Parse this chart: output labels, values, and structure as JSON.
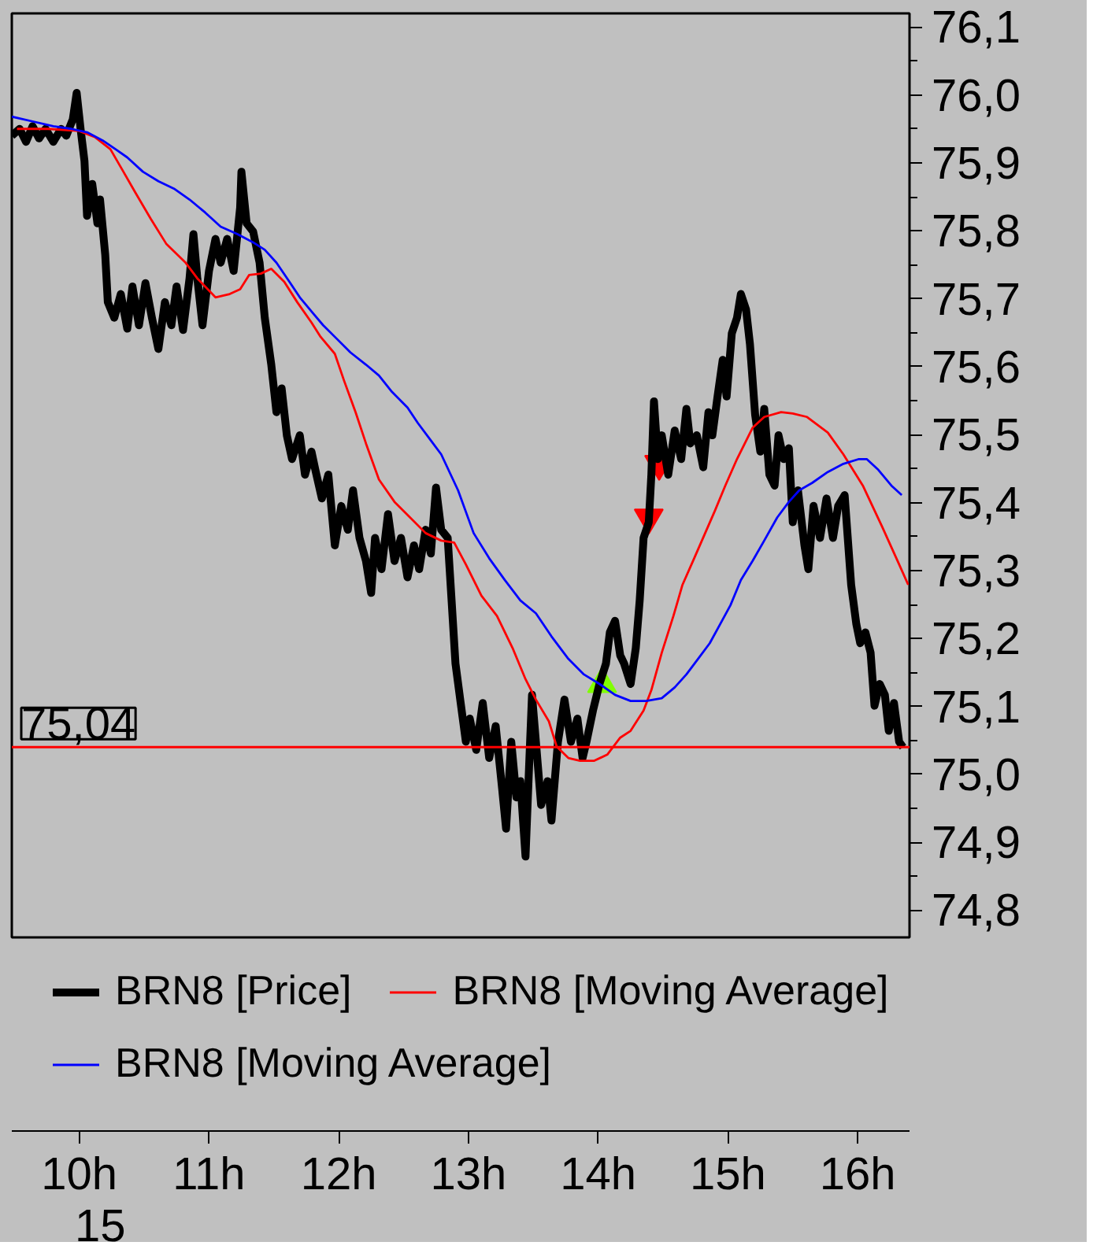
{
  "chart_data": {
    "type": "line",
    "xlim": [
      9.48,
      16.4
    ],
    "ylim": [
      74.76,
      76.12
    ],
    "xticks": [
      {
        "value": 10,
        "label": "10h"
      },
      {
        "value": 11,
        "label": "11h"
      },
      {
        "value": 12,
        "label": "12h"
      },
      {
        "value": 13,
        "label": "13h"
      },
      {
        "value": 14,
        "label": "14h"
      },
      {
        "value": 15,
        "label": "15h"
      },
      {
        "value": 16,
        "label": "16h"
      }
    ],
    "yticks": [
      {
        "value": 74.8,
        "label": "74,8"
      },
      {
        "value": 74.9,
        "label": "74,9"
      },
      {
        "value": 75.0,
        "label": "75,0"
      },
      {
        "value": 75.1,
        "label": "75,1"
      },
      {
        "value": 75.2,
        "label": "75,2"
      },
      {
        "value": 75.3,
        "label": "75,3"
      },
      {
        "value": 75.4,
        "label": "75,4"
      },
      {
        "value": 75.5,
        "label": "75,5"
      },
      {
        "value": 75.6,
        "label": "75,6"
      },
      {
        "value": 75.7,
        "label": "75,7"
      },
      {
        "value": 75.8,
        "label": "75,8"
      },
      {
        "value": 75.9,
        "label": "75,9"
      },
      {
        "value": 76.0,
        "label": "76,0"
      },
      {
        "value": 76.1,
        "label": "76,1"
      },
      {
        "value": 74.85,
        "label": null
      },
      {
        "value": 74.95,
        "label": null
      },
      {
        "value": 75.05,
        "label": null
      },
      {
        "value": 75.15,
        "label": null
      },
      {
        "value": 75.25,
        "label": null
      },
      {
        "value": 75.35,
        "label": null
      },
      {
        "value": 75.45,
        "label": null
      },
      {
        "value": 75.55,
        "label": null
      },
      {
        "value": 75.65,
        "label": null
      },
      {
        "value": 75.75,
        "label": null
      },
      {
        "value": 75.85,
        "label": null
      },
      {
        "value": 75.95,
        "label": null
      },
      {
        "value": 76.05,
        "label": null
      }
    ],
    "legend": "bottom",
    "series": [
      {
        "type": "line",
        "name": "BRN8 [Price]",
        "color": "#000000",
        "x": [
          9.48,
          9.54,
          9.59,
          9.64,
          9.69,
          9.74,
          9.8,
          9.86,
          9.9,
          9.95,
          9.98,
          10.01,
          10.04,
          10.06,
          10.1,
          10.14,
          10.16,
          10.2,
          10.22,
          10.27,
          10.32,
          10.37,
          10.41,
          10.46,
          10.51,
          10.56,
          10.61,
          10.66,
          10.71,
          10.75,
          10.8,
          10.85,
          10.88,
          10.91,
          10.95,
          11.0,
          11.05,
          11.09,
          11.14,
          11.19,
          11.24,
          11.25,
          11.29,
          11.34,
          11.39,
          11.43,
          11.48,
          11.52,
          11.56,
          11.6,
          11.64,
          11.7,
          11.74,
          11.79,
          11.82,
          11.87,
          11.92,
          11.97,
          12.02,
          12.07,
          12.11,
          12.16,
          12.21,
          12.25,
          12.28,
          12.33,
          12.38,
          12.43,
          12.48,
          12.53,
          12.58,
          12.62,
          12.67,
          12.71,
          12.75,
          12.79,
          12.84,
          12.87,
          12.9,
          12.94,
          12.98,
          13.01,
          13.06,
          13.11,
          13.16,
          13.21,
          13.26,
          13.29,
          13.33,
          13.37,
          13.4,
          13.44,
          13.47,
          13.49,
          13.52,
          13.56,
          13.61,
          13.64,
          13.69,
          13.74,
          13.79,
          13.84,
          13.88,
          13.91,
          13.96,
          14.01,
          14.06,
          14.09,
          14.13,
          14.17,
          14.2,
          14.25,
          14.29,
          14.32,
          14.35,
          14.39,
          14.41,
          14.43,
          14.46,
          14.49,
          14.54,
          14.59,
          14.64,
          14.68,
          14.71,
          14.76,
          14.81,
          14.85,
          14.88,
          14.92,
          14.96,
          14.99,
          15.03,
          15.07,
          15.1,
          15.14,
          15.17,
          15.21,
          15.25,
          15.28,
          15.32,
          15.36,
          15.39,
          15.43,
          15.47,
          15.5,
          15.54,
          15.59,
          15.62,
          15.66,
          15.71,
          15.76,
          15.81,
          15.85,
          15.9,
          15.95,
          15.99,
          16.02,
          16.06,
          16.1,
          16.13,
          16.17,
          16.21,
          16.24,
          16.28,
          16.32,
          16.35
        ],
        "values": [
          75.94,
          75.95,
          75.931,
          75.954,
          75.936,
          75.95,
          75.931,
          75.95,
          75.94,
          75.964,
          76.003,
          75.95,
          75.903,
          75.822,
          75.869,
          75.811,
          75.846,
          75.765,
          75.695,
          75.672,
          75.707,
          75.656,
          75.718,
          75.661,
          75.723,
          75.672,
          75.626,
          75.695,
          75.661,
          75.718,
          75.654,
          75.73,
          75.795,
          75.73,
          75.661,
          75.741,
          75.788,
          75.753,
          75.788,
          75.741,
          75.834,
          75.887,
          75.811,
          75.799,
          75.753,
          75.672,
          75.603,
          75.533,
          75.568,
          75.499,
          75.464,
          75.499,
          75.441,
          75.475,
          75.448,
          75.406,
          75.441,
          75.337,
          75.395,
          75.36,
          75.418,
          75.348,
          75.314,
          75.267,
          75.348,
          75.302,
          75.383,
          75.314,
          75.348,
          75.29,
          75.337,
          75.302,
          75.36,
          75.325,
          75.422,
          75.36,
          75.348,
          75.256,
          75.163,
          75.105,
          75.048,
          75.082,
          75.036,
          75.105,
          75.024,
          75.071,
          74.978,
          74.92,
          75.048,
          74.966,
          74.99,
          74.879,
          75.024,
          75.117,
          75.048,
          74.955,
          74.99,
          74.932,
          75.048,
          75.11,
          75.048,
          75.082,
          75.024,
          75.048,
          75.094,
          75.133,
          75.163,
          75.209,
          75.226,
          75.175,
          75.163,
          75.133,
          75.186,
          75.256,
          75.348,
          75.371,
          75.441,
          75.549,
          75.464,
          75.499,
          75.441,
          75.506,
          75.464,
          75.538,
          75.487,
          75.499,
          75.452,
          75.533,
          75.499,
          75.556,
          75.61,
          75.556,
          75.649,
          75.672,
          75.707,
          75.684,
          75.633,
          75.529,
          75.475,
          75.538,
          75.441,
          75.425,
          75.499,
          75.464,
          75.48,
          75.371,
          75.418,
          75.337,
          75.302,
          75.395,
          75.348,
          75.406,
          75.348,
          75.395,
          75.411,
          75.279,
          75.221,
          75.193,
          75.209,
          75.179,
          75.101,
          75.133,
          75.117,
          75.064,
          75.105,
          75.048,
          75.04
        ]
      },
      {
        "type": "line",
        "name": "BRN8 [Moving Average]",
        "color": "#ff0000",
        "x": [
          9.52,
          9.76,
          10.0,
          10.12,
          10.24,
          10.34,
          10.43,
          10.55,
          10.67,
          10.82,
          10.91,
          11.05,
          11.16,
          11.24,
          11.31,
          11.4,
          11.48,
          11.58,
          11.68,
          11.79,
          11.86,
          11.97,
          12.04,
          12.13,
          12.21,
          12.31,
          12.43,
          12.55,
          12.67,
          12.79,
          12.89,
          12.98,
          13.1,
          13.22,
          13.34,
          13.44,
          13.52,
          13.62,
          13.68,
          13.77,
          13.86,
          13.97,
          14.07,
          14.17,
          14.25,
          14.35,
          14.41,
          14.49,
          14.58,
          14.65,
          14.74,
          14.82,
          14.9,
          14.98,
          15.07,
          15.19,
          15.28,
          15.41,
          15.5,
          15.61,
          15.77,
          15.89,
          16.04,
          16.19,
          16.32,
          16.39
        ],
        "values": [
          75.95,
          75.95,
          75.947,
          75.938,
          75.92,
          75.887,
          75.857,
          75.818,
          75.781,
          75.753,
          75.73,
          75.702,
          75.707,
          75.714,
          75.735,
          75.737,
          75.744,
          75.725,
          75.695,
          75.665,
          75.644,
          75.619,
          75.58,
          75.533,
          75.487,
          75.434,
          75.401,
          75.378,
          75.355,
          75.344,
          75.341,
          75.309,
          75.263,
          75.233,
          75.186,
          75.14,
          75.11,
          75.078,
          75.041,
          75.024,
          75.02,
          75.02,
          75.029,
          75.054,
          75.064,
          75.094,
          75.124,
          75.179,
          75.233,
          75.279,
          75.318,
          75.353,
          75.388,
          75.425,
          75.464,
          75.51,
          75.526,
          75.533,
          75.531,
          75.526,
          75.503,
          75.471,
          75.425,
          75.364,
          75.309,
          75.279
        ]
      },
      {
        "type": "line",
        "name": "BRN8 [Moving Average]",
        "color": "#0000ff",
        "x": [
          9.48,
          9.64,
          9.8,
          9.94,
          10.06,
          10.18,
          10.28,
          10.37,
          10.49,
          10.61,
          10.73,
          10.85,
          10.97,
          11.09,
          11.22,
          11.34,
          11.43,
          11.52,
          11.62,
          11.7,
          11.8,
          11.88,
          11.98,
          12.09,
          12.21,
          12.31,
          12.41,
          12.53,
          12.61,
          12.7,
          12.79,
          12.92,
          13.04,
          13.16,
          13.28,
          13.4,
          13.52,
          13.64,
          13.77,
          13.89,
          14.01,
          14.13,
          14.25,
          14.37,
          14.49,
          14.59,
          14.68,
          14.77,
          14.86,
          14.94,
          15.02,
          15.1,
          15.19,
          15.28,
          15.38,
          15.47,
          15.55,
          15.65,
          15.77,
          15.89,
          16.01,
          16.07,
          16.16,
          16.26,
          16.34
        ],
        "values": [
          75.968,
          75.961,
          75.954,
          75.95,
          75.945,
          75.933,
          75.92,
          75.908,
          75.887,
          75.873,
          75.862,
          75.846,
          75.827,
          75.806,
          75.795,
          75.783,
          75.772,
          75.753,
          75.725,
          75.702,
          75.679,
          75.661,
          75.642,
          75.621,
          75.603,
          75.587,
          75.563,
          75.54,
          75.517,
          75.494,
          75.471,
          75.418,
          75.355,
          75.318,
          75.286,
          75.256,
          75.237,
          75.203,
          75.17,
          75.147,
          75.133,
          75.117,
          75.108,
          75.108,
          75.112,
          75.128,
          75.147,
          75.17,
          75.193,
          75.221,
          75.249,
          75.286,
          75.314,
          75.344,
          75.378,
          75.401,
          75.418,
          75.429,
          75.445,
          75.457,
          75.464,
          75.464,
          75.448,
          75.425,
          75.411
        ]
      },
      {
        "type": "scatter",
        "color": "#ff0000",
        "marker": "triangle_down",
        "x": [
          14.39,
          14.47
        ],
        "values": [
          75.378,
          75.457
        ]
      },
      {
        "type": "scatter",
        "color": "#80ff00",
        "marker": "triangle",
        "x": [
          14.03
        ],
        "values": [
          75.133
        ]
      }
    ],
    "ref_lines": [
      {
        "axis": "y",
        "value": 75.04,
        "label": "75,04",
        "color": "#ff0000"
      }
    ],
    "annotations": [
      "15"
    ]
  }
}
